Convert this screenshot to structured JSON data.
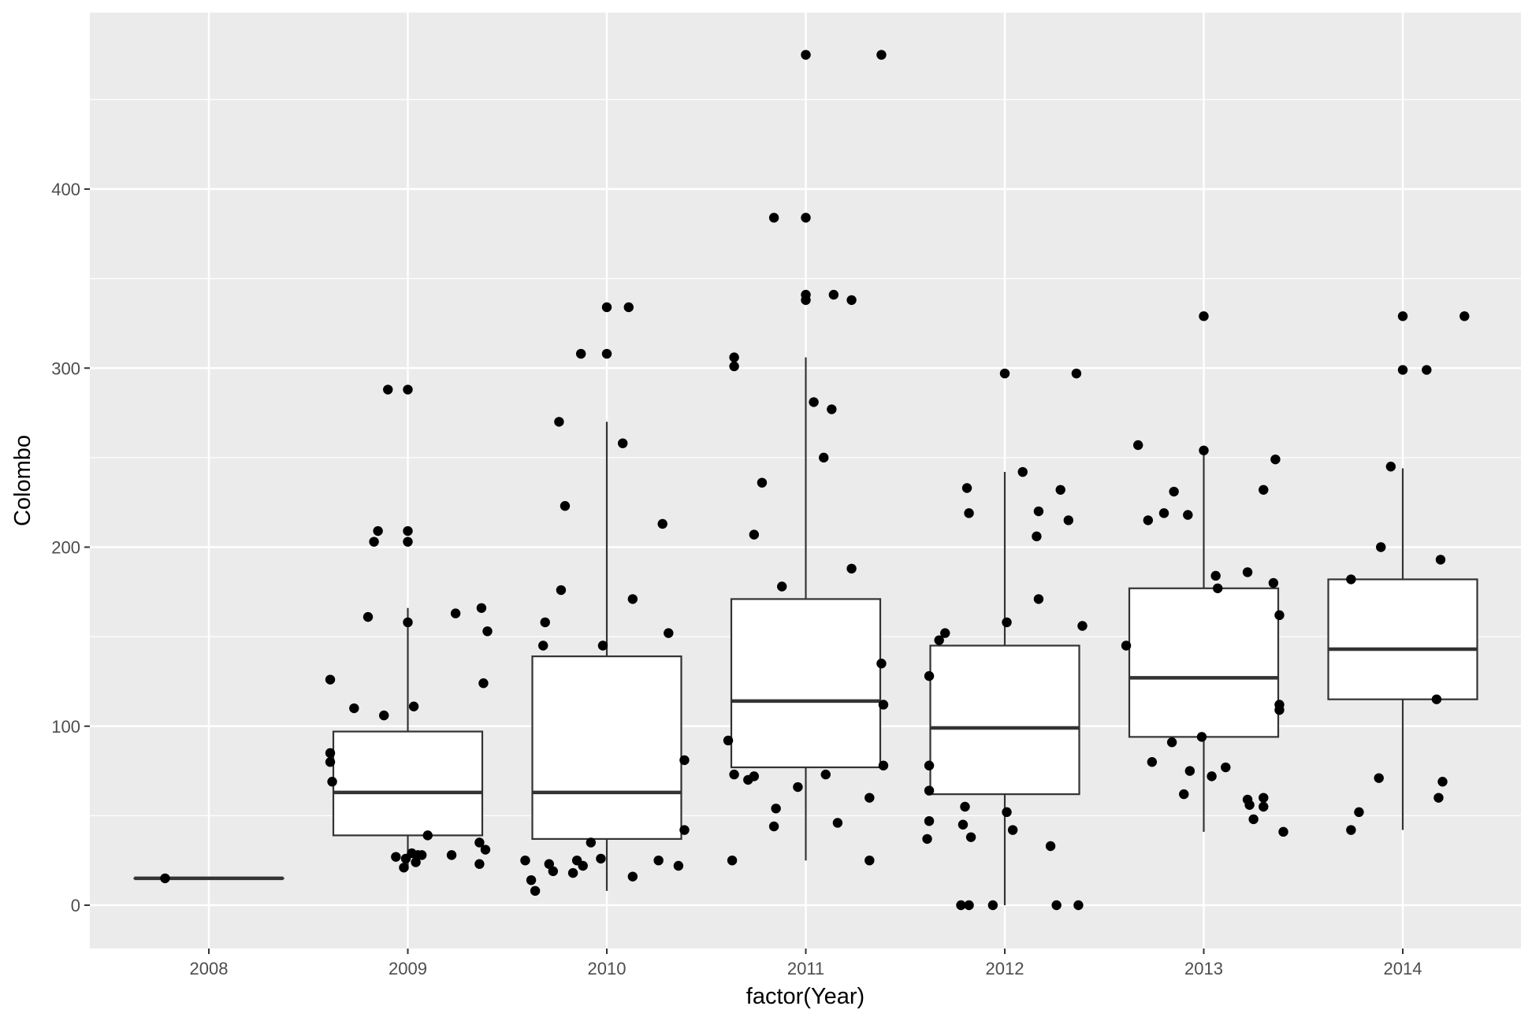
{
  "chart_data": {
    "type": "boxplot",
    "xlabel": "factor(Year)",
    "ylabel": "Colombo",
    "categories": [
      "2008",
      "2009",
      "2010",
      "2011",
      "2012",
      "2013",
      "2014"
    ],
    "yticks": [
      0,
      100,
      200,
      300,
      400
    ],
    "ylim": [
      -24,
      499
    ],
    "grid": true,
    "legend": "none",
    "colors": {
      "panel": "#ebebeb",
      "grid": "#ffffff",
      "box_fill": "#ffffff",
      "box_line": "#333333",
      "point": "#000000",
      "tick_text": "#4d4d4d"
    },
    "boxes": [
      {
        "category": "2008",
        "lower_whisker": 15,
        "q1": 15,
        "median": 15,
        "q3": 15,
        "upper_whisker": 15
      },
      {
        "category": "2009",
        "lower_whisker": 20,
        "q1": 39,
        "median": 63,
        "q3": 97,
        "upper_whisker": 166
      },
      {
        "category": "2010",
        "lower_whisker": 8,
        "q1": 37,
        "median": 63,
        "q3": 139,
        "upper_whisker": 270
      },
      {
        "category": "2011",
        "lower_whisker": 25,
        "q1": 77,
        "median": 114,
        "q3": 171,
        "upper_whisker": 306
      },
      {
        "category": "2012",
        "lower_whisker": 0,
        "q1": 62,
        "median": 99,
        "q3": 145,
        "upper_whisker": 242
      },
      {
        "category": "2013",
        "lower_whisker": 41,
        "q1": 94,
        "median": 127,
        "q3": 177,
        "upper_whisker": 254
      },
      {
        "category": "2014",
        "lower_whisker": 42,
        "q1": 115,
        "median": 143,
        "q3": 182,
        "upper_whisker": 244
      }
    ],
    "points": [
      {
        "x": 2007.78,
        "y": 15
      },
      {
        "x": 2008.61,
        "y": 126
      },
      {
        "x": 2008.61,
        "y": 85
      },
      {
        "x": 2008.61,
        "y": 80
      },
      {
        "x": 2008.62,
        "y": 69
      },
      {
        "x": 2008.73,
        "y": 110
      },
      {
        "x": 2008.8,
        "y": 161
      },
      {
        "x": 2008.83,
        "y": 203
      },
      {
        "x": 2008.85,
        "y": 209
      },
      {
        "x": 2008.88,
        "y": 106
      },
      {
        "x": 2008.9,
        "y": 288
      },
      {
        "x": 2008.94,
        "y": 27
      },
      {
        "x": 2008.98,
        "y": 21
      },
      {
        "x": 2008.99,
        "y": 26
      },
      {
        "x": 2009.0,
        "y": 288
      },
      {
        "x": 2009.0,
        "y": 209
      },
      {
        "x": 2009.0,
        "y": 203
      },
      {
        "x": 2009.0,
        "y": 158
      },
      {
        "x": 2009.02,
        "y": 29
      },
      {
        "x": 2009.03,
        "y": 111
      },
      {
        "x": 2009.04,
        "y": 24
      },
      {
        "x": 2009.05,
        "y": 28
      },
      {
        "x": 2009.07,
        "y": 28
      },
      {
        "x": 2009.1,
        "y": 39
      },
      {
        "x": 2009.22,
        "y": 28
      },
      {
        "x": 2009.24,
        "y": 163
      },
      {
        "x": 2009.36,
        "y": 35
      },
      {
        "x": 2009.36,
        "y": 23
      },
      {
        "x": 2009.37,
        "y": 166
      },
      {
        "x": 2009.38,
        "y": 124
      },
      {
        "x": 2009.39,
        "y": 31
      },
      {
        "x": 2009.4,
        "y": 153
      },
      {
        "x": 2009.59,
        "y": 25
      },
      {
        "x": 2009.62,
        "y": 14
      },
      {
        "x": 2009.64,
        "y": 8
      },
      {
        "x": 2009.68,
        "y": 145
      },
      {
        "x": 2009.69,
        "y": 158
      },
      {
        "x": 2009.71,
        "y": 23
      },
      {
        "x": 2009.73,
        "y": 19
      },
      {
        "x": 2009.76,
        "y": 270
      },
      {
        "x": 2009.77,
        "y": 176
      },
      {
        "x": 2009.79,
        "y": 223
      },
      {
        "x": 2009.83,
        "y": 18
      },
      {
        "x": 2009.85,
        "y": 25
      },
      {
        "x": 2009.87,
        "y": 308
      },
      {
        "x": 2009.88,
        "y": 22
      },
      {
        "x": 2009.92,
        "y": 35
      },
      {
        "x": 2009.97,
        "y": 26
      },
      {
        "x": 2009.98,
        "y": 145
      },
      {
        "x": 2010.0,
        "y": 334
      },
      {
        "x": 2010.0,
        "y": 308
      },
      {
        "x": 2010.08,
        "y": 258
      },
      {
        "x": 2010.11,
        "y": 334
      },
      {
        "x": 2010.13,
        "y": 171
      },
      {
        "x": 2010.13,
        "y": 16
      },
      {
        "x": 2010.26,
        "y": 25
      },
      {
        "x": 2010.28,
        "y": 213
      },
      {
        "x": 2010.31,
        "y": 152
      },
      {
        "x": 2010.36,
        "y": 22
      },
      {
        "x": 2010.39,
        "y": 81
      },
      {
        "x": 2010.39,
        "y": 42
      },
      {
        "x": 2010.61,
        "y": 92
      },
      {
        "x": 2010.63,
        "y": 25
      },
      {
        "x": 2010.64,
        "y": 301
      },
      {
        "x": 2010.64,
        "y": 306
      },
      {
        "x": 2010.64,
        "y": 73
      },
      {
        "x": 2010.71,
        "y": 70
      },
      {
        "x": 2010.74,
        "y": 72
      },
      {
        "x": 2010.78,
        "y": 236
      },
      {
        "x": 2010.84,
        "y": 44
      },
      {
        "x": 2010.84,
        "y": 384
      },
      {
        "x": 2010.85,
        "y": 54
      },
      {
        "x": 2010.88,
        "y": 178
      },
      {
        "x": 2010.96,
        "y": 66
      },
      {
        "x": 2011.0,
        "y": 475
      },
      {
        "x": 2011.0,
        "y": 384
      },
      {
        "x": 2011.0,
        "y": 341
      },
      {
        "x": 2011.0,
        "y": 338
      },
      {
        "x": 2011.04,
        "y": 281
      },
      {
        "x": 2011.09,
        "y": 250
      },
      {
        "x": 2011.1,
        "y": 73
      },
      {
        "x": 2011.13,
        "y": 277
      },
      {
        "x": 2011.14,
        "y": 341
      },
      {
        "x": 2011.16,
        "y": 46
      },
      {
        "x": 2011.23,
        "y": 338
      },
      {
        "x": 2011.23,
        "y": 188
      },
      {
        "x": 2011.32,
        "y": 60
      },
      {
        "x": 2011.32,
        "y": 25
      },
      {
        "x": 2011.38,
        "y": 475
      },
      {
        "x": 2011.38,
        "y": 135
      },
      {
        "x": 2011.39,
        "y": 112
      },
      {
        "x": 2011.39,
        "y": 78
      },
      {
        "x": 2010.74,
        "y": 207
      },
      {
        "x": 2011.61,
        "y": 37
      },
      {
        "x": 2011.62,
        "y": 128
      },
      {
        "x": 2011.62,
        "y": 78
      },
      {
        "x": 2011.62,
        "y": 64
      },
      {
        "x": 2011.62,
        "y": 47
      },
      {
        "x": 2011.67,
        "y": 148
      },
      {
        "x": 2011.7,
        "y": 152
      },
      {
        "x": 2011.78,
        "y": 0
      },
      {
        "x": 2011.79,
        "y": 45
      },
      {
        "x": 2011.8,
        "y": 55
      },
      {
        "x": 2011.81,
        "y": 233
      },
      {
        "x": 2011.82,
        "y": 219
      },
      {
        "x": 2011.82,
        "y": 0
      },
      {
        "x": 2011.83,
        "y": 38
      },
      {
        "x": 2011.94,
        "y": 0
      },
      {
        "x": 2012.0,
        "y": 297
      },
      {
        "x": 2012.01,
        "y": 158
      },
      {
        "x": 2012.01,
        "y": 52
      },
      {
        "x": 2012.04,
        "y": 42
      },
      {
        "x": 2012.09,
        "y": 242
      },
      {
        "x": 2012.16,
        "y": 206
      },
      {
        "x": 2012.17,
        "y": 171
      },
      {
        "x": 2012.17,
        "y": 220
      },
      {
        "x": 2012.23,
        "y": 33
      },
      {
        "x": 2012.26,
        "y": 0
      },
      {
        "x": 2012.28,
        "y": 232
      },
      {
        "x": 2012.32,
        "y": 215
      },
      {
        "x": 2012.36,
        "y": 297
      },
      {
        "x": 2012.37,
        "y": 0
      },
      {
        "x": 2012.39,
        "y": 156
      },
      {
        "x": 2012.61,
        "y": 145
      },
      {
        "x": 2012.67,
        "y": 257
      },
      {
        "x": 2012.72,
        "y": 215
      },
      {
        "x": 2012.74,
        "y": 80
      },
      {
        "x": 2012.8,
        "y": 219
      },
      {
        "x": 2012.84,
        "y": 91
      },
      {
        "x": 2012.85,
        "y": 231
      },
      {
        "x": 2012.9,
        "y": 62
      },
      {
        "x": 2012.92,
        "y": 218
      },
      {
        "x": 2012.93,
        "y": 75
      },
      {
        "x": 2012.99,
        "y": 94
      },
      {
        "x": 2013.0,
        "y": 329
      },
      {
        "x": 2013.0,
        "y": 254
      },
      {
        "x": 2013.04,
        "y": 72
      },
      {
        "x": 2013.06,
        "y": 184
      },
      {
        "x": 2013.07,
        "y": 177
      },
      {
        "x": 2013.11,
        "y": 77
      },
      {
        "x": 2013.22,
        "y": 186
      },
      {
        "x": 2013.22,
        "y": 59
      },
      {
        "x": 2013.23,
        "y": 56
      },
      {
        "x": 2013.25,
        "y": 48
      },
      {
        "x": 2013.3,
        "y": 232
      },
      {
        "x": 2013.3,
        "y": 60
      },
      {
        "x": 2013.3,
        "y": 55
      },
      {
        "x": 2013.35,
        "y": 180
      },
      {
        "x": 2013.36,
        "y": 249
      },
      {
        "x": 2013.38,
        "y": 162
      },
      {
        "x": 2013.38,
        "y": 112
      },
      {
        "x": 2013.38,
        "y": 109
      },
      {
        "x": 2013.4,
        "y": 41
      },
      {
        "x": 2013.74,
        "y": 42
      },
      {
        "x": 2013.74,
        "y": 182
      },
      {
        "x": 2013.78,
        "y": 52
      },
      {
        "x": 2013.89,
        "y": 200
      },
      {
        "x": 2013.88,
        "y": 71
      },
      {
        "x": 2013.94,
        "y": 245
      },
      {
        "x": 2014.0,
        "y": 329
      },
      {
        "x": 2014.0,
        "y": 299
      },
      {
        "x": 2014.12,
        "y": 299
      },
      {
        "x": 2014.17,
        "y": 115
      },
      {
        "x": 2014.18,
        "y": 60
      },
      {
        "x": 2014.19,
        "y": 193
      },
      {
        "x": 2014.2,
        "y": 69
      },
      {
        "x": 2014.31,
        "y": 329
      }
    ]
  }
}
